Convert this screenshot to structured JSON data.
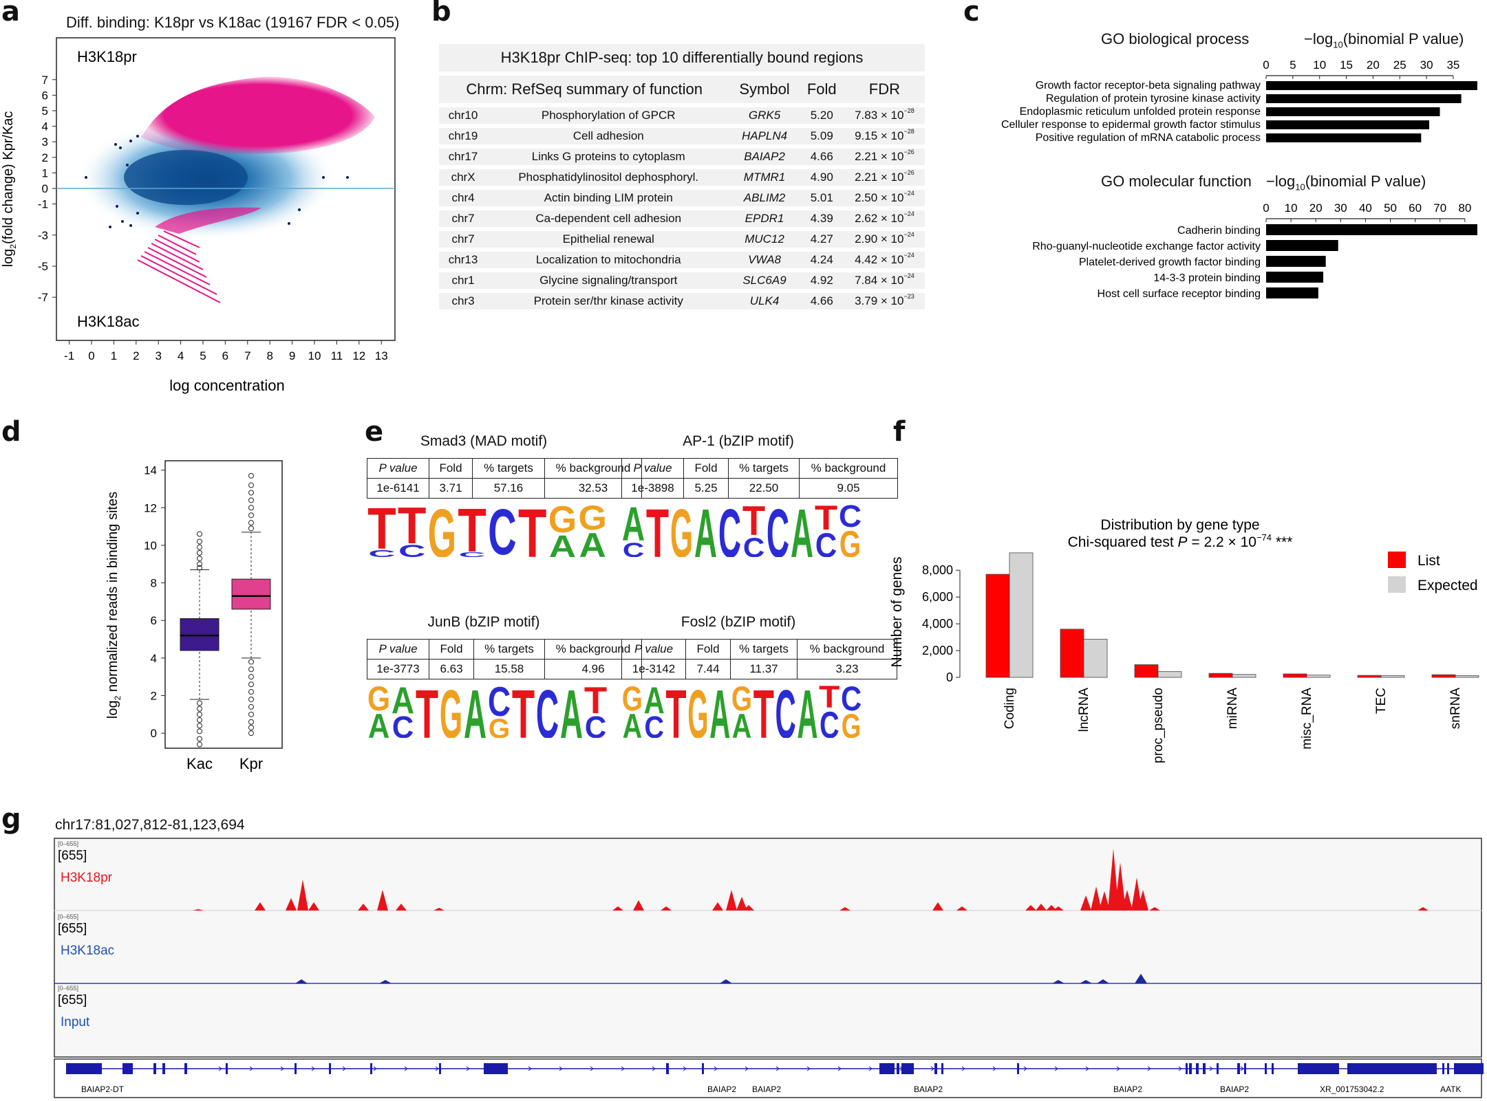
{
  "panels": {
    "a": "a",
    "b": "b",
    "c": "c",
    "d": "d",
    "e": "e",
    "f": "f",
    "g": "g"
  },
  "panel_a": {
    "title": "Diff. binding: K18pr vs K18ac (19167 FDR < 0.05)",
    "top_label": "H3K18pr",
    "bottom_label": "H3K18ac",
    "ylabel": "log2(fold change) Kpr/Kac",
    "xlabel": "log concentration",
    "xticks": [
      "-1",
      "0",
      "1",
      "2",
      "3",
      "4",
      "5",
      "6",
      "7",
      "8",
      "9",
      "10",
      "11",
      "12",
      "13"
    ],
    "yticks": [
      "7",
      "6",
      "5",
      "4",
      "3",
      "2",
      "1",
      "0",
      "-1",
      "-3",
      "-5",
      "-7"
    ],
    "colors": {
      "density": "#1f6fb0",
      "significant": "#e6158a",
      "outlier": "#0b1f5e",
      "zero_line": "#5aa9d6"
    }
  },
  "panel_b": {
    "title": "H3K18pr ChIP-seq: top 10 differentially bound regions",
    "headers": [
      "Chrm: RefSeq summary of function",
      "Symbol",
      "Fold",
      "FDR"
    ],
    "rows": [
      {
        "chr": "chr10",
        "func": "Phosphorylation of GPCR",
        "sym": "GRK5",
        "fold": "5.20",
        "fdr": "7.83 × 10",
        "exp": "−28"
      },
      {
        "chr": "chr19",
        "func": "Cell adhesion",
        "sym": "HAPLN4",
        "fold": "5.09",
        "fdr": "9.15 × 10",
        "exp": "−28"
      },
      {
        "chr": "chr17",
        "func": "Links G proteins to cytoplasm",
        "sym": "BAIAP2",
        "fold": "4.66",
        "fdr": "2.21 × 10",
        "exp": "−26"
      },
      {
        "chr": "chrX",
        "func": "Phosphatidylinositol dephosphoryl.",
        "sym": "MTMR1",
        "fold": "4.90",
        "fdr": "2.21 × 10",
        "exp": "−26"
      },
      {
        "chr": "chr4",
        "func": "Actin binding LIM protein",
        "sym": "ABLIM2",
        "fold": "5.01",
        "fdr": "2.50 × 10",
        "exp": "−24"
      },
      {
        "chr": "chr7",
        "func": "Ca-dependent cell adhesion",
        "sym": "EPDR1",
        "fold": "4.39",
        "fdr": "2.62 × 10",
        "exp": "−24"
      },
      {
        "chr": "chr7",
        "func": "Epithelial renewal",
        "sym": "MUC12",
        "fold": "4.27",
        "fdr": "2.90 × 10",
        "exp": "−24"
      },
      {
        "chr": "chr13",
        "func": "Localization to mitochondria",
        "sym": "VWA8",
        "fold": "4.24",
        "fdr": "4.42 × 10",
        "exp": "−24"
      },
      {
        "chr": "chr1",
        "func": "Glycine signaling/transport",
        "sym": "SLC6A9",
        "fold": "4.92",
        "fdr": "7.84 × 10",
        "exp": "−24"
      },
      {
        "chr": "chr3",
        "func": "Protein ser/thr kinase activity",
        "sym": "ULK4",
        "fold": "4.66",
        "fdr": "3.79 × 10",
        "exp": "−23"
      }
    ]
  },
  "panel_c": {
    "bp_title": "GO biological process",
    "mf_title": "GO molecular function",
    "axis_title_prefix": "−log",
    "axis_title_sub": "10",
    "axis_title_suffix": "(binomial P value)",
    "bp_ticks": [
      "0",
      "5",
      "10",
      "15",
      "20",
      "25",
      "30",
      "35"
    ],
    "mf_ticks": [
      "0",
      "10",
      "20",
      "30",
      "40",
      "50",
      "60",
      "70",
      "80"
    ],
    "bp_terms": [
      "Growth factor receptor-beta signaling pathway",
      "Regulation of protein tyrosine kinase activity",
      "Endoplasmic reticulum unfolded protein response",
      "Celluler response to epidermal growth factor stimulus",
      "Positive regulation of mRNA catabolic process"
    ],
    "mf_terms": [
      "Cadherin binding",
      "Rho-guanyl-nucleotide exchange factor activity",
      "Platelet-derived growth factor binding",
      "14-3-3 protein binding",
      "Host cell surface receptor binding"
    ]
  },
  "panel_d": {
    "ylabel": "log2 normalized reads in binding sites",
    "yticks": [
      "0",
      "2",
      "4",
      "6",
      "8",
      "10",
      "12",
      "14"
    ],
    "groups": [
      "Kac",
      "Kpr"
    ],
    "colors": {
      "Kac": "#3d1a8e",
      "Kpr": "#e0408e"
    }
  },
  "panel_e": {
    "headers": [
      "P value",
      "Fold",
      "% targets",
      "% background"
    ],
    "motifs": [
      {
        "title": "Smad3 (MAD motif)",
        "p": "1e-6141",
        "fold": "3.71",
        "targets": "57.16",
        "background": "32.53"
      },
      {
        "title": "AP-1 (bZIP motif)",
        "p": "1e-3898",
        "fold": "5.25",
        "targets": "22.50",
        "background": "9.05"
      },
      {
        "title": "JunB (bZIP motif)",
        "p": "1e-3773",
        "fold": "6.63",
        "targets": "15.58",
        "background": "4.96"
      },
      {
        "title": "Fosl2 (bZIP motif)",
        "p": "1e-3142",
        "fold": "7.44",
        "targets": "11.37",
        "background": "3.23"
      }
    ],
    "logos": [
      [
        "T",
        "T",
        "G",
        "T",
        "C",
        "T",
        "G",
        "G"
      ],
      [
        "A",
        "T",
        "G",
        "A",
        "C",
        "T",
        "C",
        "A",
        "T",
        "C"
      ],
      [
        "G",
        "A",
        "T",
        "G",
        "A",
        "C",
        "T",
        "C",
        "A",
        "T"
      ],
      [
        "G",
        "A",
        "T",
        "G",
        "A",
        "G",
        "T",
        "C",
        "A",
        "T",
        "C"
      ]
    ],
    "base_colors": {
      "A": "#2ca02c",
      "C": "#2b2bd6",
      "G": "#f0a020",
      "T": "#e8141a"
    }
  },
  "panel_f": {
    "title": "Distribution by gene type",
    "subtitle_prefix": "Chi-squared test ",
    "subtitle_p": "P",
    "subtitle_mid": " = 2.2 × 10",
    "subtitle_exp": "−74",
    "subtitle_suffix": " ***",
    "ylabel": "Number of genes",
    "yticks": [
      "0",
      "2,000",
      "4,000",
      "6,000",
      "8,000"
    ],
    "legend": [
      "List",
      "Expected"
    ]
  },
  "panel_g": {
    "locus": "chr17:81,027,812-81,123,694",
    "range_label": "[0–655]",
    "scale_label": "[655]",
    "tracks": [
      {
        "name": "H3K18pr",
        "color": "#e8141a"
      },
      {
        "name": "H3K18ac",
        "color": "#1f4fb0"
      },
      {
        "name": "Input",
        "color": "#1f4fb0"
      }
    ],
    "genes": [
      "BAIAP2-DT",
      "BAIAP2",
      "BAIAP2",
      "BAIAP2",
      "BAIAP2",
      "BAIAP2",
      "XR_001753042.2",
      "AATK"
    ],
    "gene_color": "#1a1aa8"
  },
  "chart_data": [
    {
      "type": "bar",
      "title": "GO biological process",
      "xlabel": "−log10(binomial P value)",
      "categories": [
        "Growth factor receptor-beta signaling pathway",
        "Regulation of protein tyrosine kinase activity",
        "Endoplasmic reticulum unfolded protein response",
        "Celluler response to epidermal growth factor stimulus",
        "Positive regulation of mRNA catabolic process"
      ],
      "values": [
        39.5,
        36.5,
        32.5,
        30.5,
        29
      ],
      "xlim": [
        0,
        40
      ]
    },
    {
      "type": "bar",
      "title": "GO molecular function",
      "xlabel": "−log10(binomial P value)",
      "categories": [
        "Cadherin binding",
        "Rho-guanyl-nucleotide exchange factor activity",
        "Platelet-derived growth factor binding",
        "14-3-3 protein binding",
        "Host cell surface receptor binding"
      ],
      "values": [
        85,
        29,
        24,
        23,
        21
      ],
      "xlim": [
        0,
        88
      ]
    },
    {
      "type": "bar",
      "title": "Distribution by gene type",
      "ylabel": "Number of genes",
      "categories": [
        "Coding",
        "lncRNA",
        "proc_pseudo",
        "miRNA",
        "misc_RNA",
        "TEC",
        "snRNA"
      ],
      "series": [
        {
          "name": "List",
          "values": [
            7700,
            3600,
            950,
            300,
            260,
            150,
            200
          ],
          "color": "#ff0000"
        },
        {
          "name": "Expected",
          "values": [
            9300,
            2850,
            430,
            220,
            170,
            140,
            130
          ],
          "color": "#d3d3d3"
        }
      ],
      "ylim": [
        0,
        9500
      ]
    },
    {
      "type": "box",
      "ylabel": "log2 normalized reads in binding sites",
      "categories": [
        "Kac",
        "Kpr"
      ],
      "boxes": [
        {
          "name": "Kac",
          "q1": 4.4,
          "median": 5.2,
          "q3": 6.1,
          "whisker_low": 1.8,
          "whisker_high": 8.7
        },
        {
          "name": "Kpr",
          "q1": 6.6,
          "median": 7.3,
          "q3": 8.2,
          "whisker_low": 4.0,
          "whisker_high": 10.7
        }
      ],
      "ylim": [
        -0.8,
        14.5
      ]
    }
  ]
}
